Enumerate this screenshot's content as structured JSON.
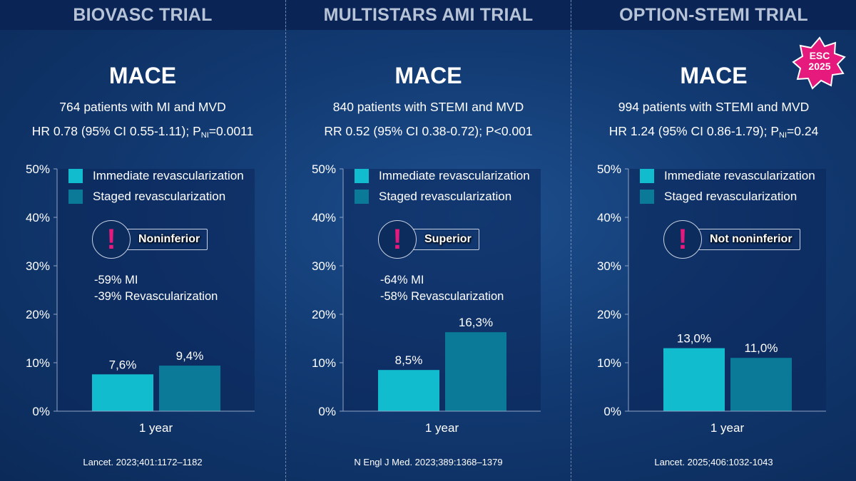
{
  "colors": {
    "immediate": "#12bccf",
    "staged": "#0a7a98",
    "accent": "#e6197c",
    "header_bg": "#0a2455"
  },
  "legend": {
    "immediate": "Immediate revascularization",
    "staged": "Staged revascularization"
  },
  "badge": {
    "line1": "ESC",
    "line2": "2025"
  },
  "panels": [
    {
      "title": "BIOVASC TRIAL",
      "outcome": "MACE",
      "population": "764 patients with MI and MVD",
      "stats_main": "HR 0.78 (95% CI 0.55-1.11); P",
      "stats_sub": "NI",
      "stats_tail": "=0.0011",
      "callout": "Noninferior",
      "callout_icon": "exclamation-icon",
      "effects": [
        "-59% MI",
        "-39% Revascularization"
      ],
      "reference": "Lancet. 2023;401:1172–1182"
    },
    {
      "title": "MULTISTARS AMI TRIAL",
      "outcome": "MACE",
      "population": "840 patients with STEMI and MVD",
      "stats_main": "RR 0.52 (95% CI 0.38-0.72); P<0.001",
      "stats_sub": "",
      "stats_tail": "",
      "callout": "Superior",
      "callout_icon": "exclamation-icon",
      "effects": [
        "-64% MI",
        "-58% Revascularization"
      ],
      "reference": "N Engl J Med. 2023;389:1368–1379"
    },
    {
      "title": "OPTION-STEMI TRIAL",
      "outcome": "MACE",
      "population": "994 patients with STEMI and MVD",
      "stats_main": "HR 1.24 (95% CI 0.86-1.79); P",
      "stats_sub": "NI",
      "stats_tail": "=0.24",
      "callout": "Not noninferior",
      "callout_icon": "exclamation-icon",
      "effects": [],
      "reference": "Lancet. 2025;406:1032-1043"
    }
  ],
  "chart_data": [
    {
      "type": "bar",
      "title": "BIOVASC TRIAL",
      "categories": [
        "1 year"
      ],
      "series": [
        {
          "name": "Immediate revascularization",
          "values": [
            7.6
          ],
          "label": "7,6%"
        },
        {
          "name": "Staged revascularization",
          "values": [
            9.4
          ],
          "label": "9,4%"
        }
      ],
      "ylim": [
        0,
        50
      ],
      "yticks": [
        0,
        10,
        20,
        30,
        40,
        50
      ],
      "ytick_labels": [
        "0%",
        "10%",
        "20%",
        "30%",
        "40%",
        "50%"
      ],
      "legend": "top-left"
    },
    {
      "type": "bar",
      "title": "MULTISTARS AMI TRIAL",
      "categories": [
        "1 year"
      ],
      "series": [
        {
          "name": "Immediate revascularization",
          "values": [
            8.5
          ],
          "label": "8,5%"
        },
        {
          "name": "Staged revascularization",
          "values": [
            16.3
          ],
          "label": "16,3%"
        }
      ],
      "ylim": [
        0,
        50
      ],
      "yticks": [
        0,
        10,
        20,
        30,
        40,
        50
      ],
      "ytick_labels": [
        "0%",
        "10%",
        "20%",
        "30%",
        "40%",
        "50%"
      ],
      "legend": "top-left"
    },
    {
      "type": "bar",
      "title": "OPTION-STEMI TRIAL",
      "categories": [
        "1 year"
      ],
      "series": [
        {
          "name": "Immediate revascularization",
          "values": [
            13.0
          ],
          "label": "13,0%"
        },
        {
          "name": "Staged revascularization",
          "values": [
            11.0
          ],
          "label": "11,0%"
        }
      ],
      "ylim": [
        0,
        50
      ],
      "yticks": [
        0,
        10,
        20,
        30,
        40,
        50
      ],
      "ytick_labels": [
        "0%",
        "10%",
        "20%",
        "30%",
        "40%",
        "50%"
      ],
      "legend": "top-left"
    }
  ]
}
